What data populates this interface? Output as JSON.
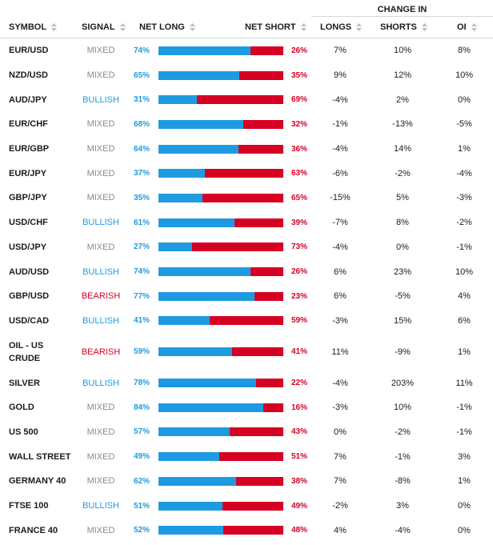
{
  "header": {
    "group_label": "CHANGE IN",
    "symbol": "SYMBOL",
    "signal": "SIGNAL",
    "net_long": "NET LONG",
    "net_short": "NET SHORT",
    "longs": "LONGS",
    "shorts": "SHORTS",
    "oi": "OI"
  },
  "colors": {
    "long": "#1e9be0",
    "short": "#d60022",
    "mixed": "#8a8a8a",
    "bullish": "#1e9be0",
    "bearish": "#d60022"
  },
  "rows": [
    {
      "symbol": "EUR/USD",
      "signal": "MIXED",
      "net_long": "74%",
      "net_short": "26%",
      "long_pct": 74,
      "longs": "7%",
      "shorts": "10%",
      "oi": "8%"
    },
    {
      "symbol": "NZD/USD",
      "signal": "MIXED",
      "net_long": "65%",
      "net_short": "35%",
      "long_pct": 65,
      "longs": "9%",
      "shorts": "12%",
      "oi": "10%"
    },
    {
      "symbol": "AUD/JPY",
      "signal": "BULLISH",
      "net_long": "31%",
      "net_short": "69%",
      "long_pct": 31,
      "longs": "-4%",
      "shorts": "2%",
      "oi": "0%"
    },
    {
      "symbol": "EUR/CHF",
      "signal": "MIXED",
      "net_long": "68%",
      "net_short": "32%",
      "long_pct": 68,
      "longs": "-1%",
      "shorts": "-13%",
      "oi": "-5%"
    },
    {
      "symbol": "EUR/GBP",
      "signal": "MIXED",
      "net_long": "64%",
      "net_short": "36%",
      "long_pct": 64,
      "longs": "-4%",
      "shorts": "14%",
      "oi": "1%"
    },
    {
      "symbol": "EUR/JPY",
      "signal": "MIXED",
      "net_long": "37%",
      "net_short": "63%",
      "long_pct": 37,
      "longs": "-6%",
      "shorts": "-2%",
      "oi": "-4%"
    },
    {
      "symbol": "GBP/JPY",
      "signal": "MIXED",
      "net_long": "35%",
      "net_short": "65%",
      "long_pct": 35,
      "longs": "-15%",
      "shorts": "5%",
      "oi": "-3%"
    },
    {
      "symbol": "USD/CHF",
      "signal": "BULLISH",
      "net_long": "61%",
      "net_short": "39%",
      "long_pct": 61,
      "longs": "-7%",
      "shorts": "8%",
      "oi": "-2%"
    },
    {
      "symbol": "USD/JPY",
      "signal": "MIXED",
      "net_long": "27%",
      "net_short": "73%",
      "long_pct": 27,
      "longs": "-4%",
      "shorts": "0%",
      "oi": "-1%"
    },
    {
      "symbol": "AUD/USD",
      "signal": "BULLISH",
      "net_long": "74%",
      "net_short": "26%",
      "long_pct": 74,
      "longs": "6%",
      "shorts": "23%",
      "oi": "10%"
    },
    {
      "symbol": "GBP/USD",
      "signal": "BEARISH",
      "net_long": "77%",
      "net_short": "23%",
      "long_pct": 77,
      "longs": "6%",
      "shorts": "-5%",
      "oi": "4%"
    },
    {
      "symbol": "USD/CAD",
      "signal": "BULLISH",
      "net_long": "41%",
      "net_short": "59%",
      "long_pct": 41,
      "longs": "-3%",
      "shorts": "15%",
      "oi": "6%"
    },
    {
      "symbol": "OIL - US CRUDE",
      "signal": "BEARISH",
      "net_long": "59%",
      "net_short": "41%",
      "long_pct": 59,
      "longs": "11%",
      "shorts": "-9%",
      "oi": "1%"
    },
    {
      "symbol": "SILVER",
      "signal": "BULLISH",
      "net_long": "78%",
      "net_short": "22%",
      "long_pct": 78,
      "longs": "-4%",
      "shorts": "203%",
      "oi": "11%"
    },
    {
      "symbol": "GOLD",
      "signal": "MIXED",
      "net_long": "84%",
      "net_short": "16%",
      "long_pct": 84,
      "longs": "-3%",
      "shorts": "10%",
      "oi": "-1%"
    },
    {
      "symbol": "US 500",
      "signal": "MIXED",
      "net_long": "57%",
      "net_short": "43%",
      "long_pct": 57,
      "longs": "0%",
      "shorts": "-2%",
      "oi": "-1%"
    },
    {
      "symbol": "WALL STREET",
      "signal": "MIXED",
      "net_long": "49%",
      "net_short": "51%",
      "long_pct": 49,
      "longs": "7%",
      "shorts": "-1%",
      "oi": "3%"
    },
    {
      "symbol": "GERMANY 40",
      "signal": "MIXED",
      "net_long": "62%",
      "net_short": "38%",
      "long_pct": 62,
      "longs": "7%",
      "shorts": "-8%",
      "oi": "1%"
    },
    {
      "symbol": "FTSE 100",
      "signal": "BULLISH",
      "net_long": "51%",
      "net_short": "49%",
      "long_pct": 51,
      "longs": "-2%",
      "shorts": "3%",
      "oi": "0%"
    },
    {
      "symbol": "FRANCE 40",
      "signal": "MIXED",
      "net_long": "52%",
      "net_short": "48%",
      "long_pct": 52,
      "longs": "4%",
      "shorts": "-4%",
      "oi": "0%"
    }
  ]
}
